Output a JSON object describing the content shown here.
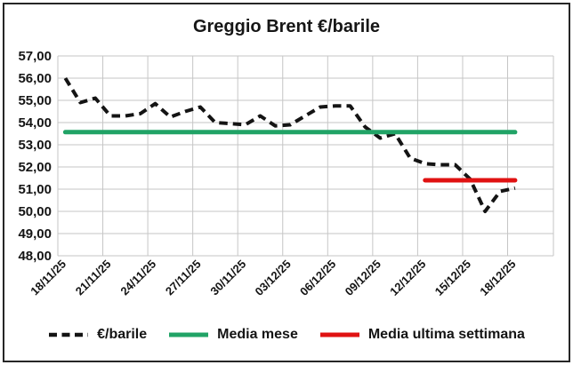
{
  "title": "Greggio Brent €/barile",
  "colors": {
    "series_line": "#141414",
    "media_mese": "#21A366",
    "media_ultima_settimana": "#E01212",
    "grid": "#C6C6C6",
    "frame_border": "#262626",
    "text": "#141414"
  },
  "chart_data": {
    "type": "line",
    "title": "Greggio Brent €/barile",
    "grid": true,
    "legend_position": "bottom",
    "ylim": [
      48,
      57
    ],
    "y_ticks": [
      "57,00",
      "56,00",
      "55,00",
      "54,00",
      "53,00",
      "52,00",
      "51,00",
      "50,00",
      "49,00",
      "48,00"
    ],
    "x_tick_labels": [
      "18/11/25",
      "21/11/25",
      "24/11/25",
      "27/11/25",
      "30/11/25",
      "03/12/25",
      "06/12/25",
      "09/12/25",
      "12/12/25",
      "15/12/25",
      "18/12/25"
    ],
    "x": [
      "18/11/25",
      "19/11/25",
      "20/11/25",
      "21/11/25",
      "22/11/25",
      "23/11/25",
      "24/11/25",
      "25/11/25",
      "26/11/25",
      "27/11/25",
      "28/11/25",
      "29/11/25",
      "30/11/25",
      "01/12/25",
      "02/12/25",
      "03/12/25",
      "04/12/25",
      "05/12/25",
      "06/12/25",
      "07/12/25",
      "08/12/25",
      "09/12/25",
      "10/12/25",
      "11/12/25",
      "12/12/25",
      "13/12/25",
      "14/12/25",
      "15/12/25",
      "16/12/25",
      "17/12/25",
      "18/12/25"
    ],
    "series": [
      {
        "name": "€/barile",
        "type": "line",
        "style": "dashed",
        "color": "#141414",
        "values": [
          56.0,
          54.9,
          55.1,
          54.3,
          54.3,
          54.4,
          54.85,
          54.25,
          54.5,
          54.7,
          54.0,
          53.95,
          53.9,
          54.3,
          53.85,
          53.9,
          54.3,
          54.7,
          54.75,
          54.75,
          53.8,
          53.3,
          53.5,
          52.4,
          52.15,
          52.1,
          52.1,
          51.45,
          50.0,
          50.9,
          51.05
        ]
      },
      {
        "name": "Media mese",
        "type": "hline",
        "style": "solid",
        "color": "#21A366",
        "value": 53.57,
        "span_days": [
          0,
          30
        ]
      },
      {
        "name": "Media ultima settimana",
        "type": "hline",
        "style": "solid",
        "color": "#E01212",
        "value": 51.4,
        "span_days": [
          24,
          30
        ]
      }
    ]
  }
}
